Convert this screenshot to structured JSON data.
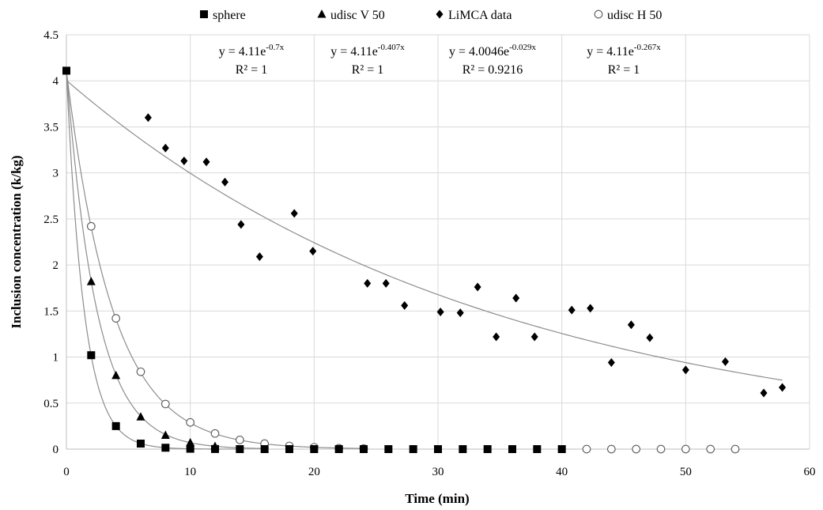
{
  "chart_data": {
    "type": "scatter",
    "xlabel": "Time (min)",
    "ylabel": "Inclusion concentration (k/kg)",
    "xlim": [
      0,
      60
    ],
    "ylim": [
      0,
      4.5
    ],
    "x_ticks": [
      "0",
      "10",
      "20",
      "30",
      "40",
      "50",
      "60"
    ],
    "y_ticks": [
      "0",
      "0.5",
      "1",
      "1.5",
      "2",
      "2.5",
      "3",
      "3.5",
      "4",
      "4.5"
    ],
    "grid": true,
    "legend_position": "top",
    "series": [
      {
        "name": "sphere",
        "marker": "square",
        "points": [
          [
            0,
            4.11
          ],
          [
            2,
            1.02
          ],
          [
            4,
            0.25
          ],
          [
            6,
            0.06
          ],
          [
            8,
            0.015
          ],
          [
            10,
            0.004
          ],
          [
            12,
            0.001
          ],
          [
            14,
            0
          ],
          [
            16,
            0
          ],
          [
            18,
            0
          ],
          [
            20,
            0
          ],
          [
            22,
            0
          ],
          [
            24,
            0
          ],
          [
            26,
            0
          ],
          [
            28,
            0
          ],
          [
            30,
            0
          ],
          [
            32,
            0
          ],
          [
            34,
            0
          ],
          [
            36,
            0
          ],
          [
            38,
            0
          ],
          [
            40,
            0
          ]
        ]
      },
      {
        "name": "udisc V 50",
        "marker": "triangle",
        "points": [
          [
            2,
            1.82
          ],
          [
            4,
            0.8
          ],
          [
            6,
            0.35
          ],
          [
            8,
            0.15
          ],
          [
            10,
            0.07
          ],
          [
            12,
            0.03
          ]
        ]
      },
      {
        "name": "LiMCA data",
        "marker": "diamond",
        "points": [
          [
            6.6,
            3.6
          ],
          [
            8,
            3.27
          ],
          [
            9.5,
            3.13
          ],
          [
            11.3,
            3.12
          ],
          [
            12.8,
            2.9
          ],
          [
            14.1,
            2.44
          ],
          [
            15.6,
            2.09
          ],
          [
            18.4,
            2.56
          ],
          [
            19.9,
            2.15
          ],
          [
            24.3,
            1.8
          ],
          [
            25.8,
            1.8
          ],
          [
            27.3,
            1.56
          ],
          [
            30.2,
            1.49
          ],
          [
            31.8,
            1.48
          ],
          [
            33.2,
            1.76
          ],
          [
            34.7,
            1.22
          ],
          [
            36.3,
            1.64
          ],
          [
            37.8,
            1.22
          ],
          [
            40.8,
            1.51
          ],
          [
            42.3,
            1.53
          ],
          [
            44.0,
            0.94
          ],
          [
            45.6,
            1.35
          ],
          [
            47.1,
            1.21
          ],
          [
            50.0,
            0.86
          ],
          [
            53.2,
            0.95
          ],
          [
            56.3,
            0.61
          ],
          [
            57.8,
            0.67
          ]
        ]
      },
      {
        "name": "udisc H 50",
        "marker": "circle",
        "points": [
          [
            2,
            2.42
          ],
          [
            4,
            1.42
          ],
          [
            6,
            0.84
          ],
          [
            8,
            0.49
          ],
          [
            10,
            0.29
          ],
          [
            12,
            0.17
          ],
          [
            14,
            0.1
          ],
          [
            16,
            0.06
          ],
          [
            18,
            0.035
          ],
          [
            20,
            0.02
          ],
          [
            22,
            0.01
          ],
          [
            24,
            0.007
          ],
          [
            42,
            0
          ],
          [
            44,
            0
          ],
          [
            46,
            0
          ],
          [
            48,
            0
          ],
          [
            50,
            0
          ],
          [
            52,
            0
          ],
          [
            54,
            0
          ]
        ]
      }
    ],
    "trendlines": [
      {
        "a": 4.11,
        "b": 0.7,
        "x_max": 14
      },
      {
        "a": 4.11,
        "b": 0.407,
        "x_max": 16
      },
      {
        "a": 4.0046,
        "b": 0.029,
        "x_max": 57.8
      },
      {
        "a": 4.11,
        "b": 0.267,
        "x_max": 24
      }
    ],
    "equations": [
      {
        "base": "y = 4.11e",
        "exp": "-0.7x",
        "r2": "R² = 1"
      },
      {
        "base": "y = 4.11e",
        "exp": "-0.407x",
        "r2": "R² = 1"
      },
      {
        "base": "y = 4.0046e",
        "exp": "-0.029x",
        "r2": "R² = 0.9216"
      },
      {
        "base": "y = 4.11e",
        "exp": "-0.267x",
        "r2": "R² = 1"
      }
    ]
  }
}
